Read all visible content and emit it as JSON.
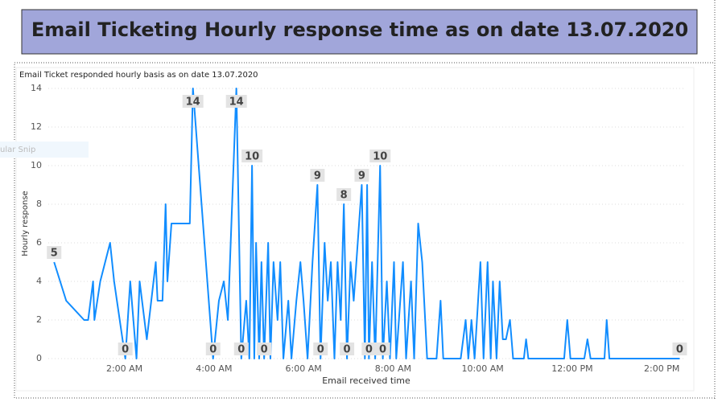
{
  "header": {
    "title": "Email Ticketing Hourly response time as on date 13.07.2020"
  },
  "overlay_text": "ular Snip",
  "chart_data": {
    "type": "line",
    "title": "Email Ticket responded hourly basis as on date 13.07.2020",
    "x_label": "Email received time",
    "y_label": "Hourly response",
    "x": [
      0.43,
      0.7,
      1.1,
      1.19,
      1.3,
      1.33,
      1.46,
      1.68,
      1.77,
      2.02,
      2.13,
      2.27,
      2.34,
      2.5,
      2.7,
      2.74,
      2.85,
      2.92,
      2.96,
      3.05,
      3.14,
      3.46,
      3.53,
      3.98,
      4.11,
      4.22,
      4.31,
      4.5,
      4.61,
      4.72,
      4.79,
      4.85,
      4.9,
      4.94,
      5.01,
      5.06,
      5.12,
      5.21,
      5.26,
      5.33,
      5.42,
      5.48,
      5.55,
      5.66,
      5.73,
      5.84,
      5.93,
      6.0,
      6.09,
      6.2,
      6.31,
      6.38,
      6.47,
      6.54,
      6.61,
      6.69,
      6.76,
      6.83,
      6.9,
      6.97,
      7.05,
      7.12,
      7.21,
      7.3,
      7.37,
      7.42,
      7.46,
      7.53,
      7.6,
      7.71,
      7.77,
      7.86,
      7.93,
      8.02,
      8.07,
      8.22,
      8.29,
      8.4,
      8.47,
      8.56,
      8.65,
      8.76,
      8.97,
      9.06,
      9.12,
      9.51,
      9.62,
      9.68,
      9.75,
      9.82,
      9.95,
      10.02,
      10.11,
      10.18,
      10.23,
      10.31,
      10.38,
      10.45,
      10.52,
      10.61,
      10.68,
      10.92,
      10.97,
      11.02,
      11.82,
      11.89,
      11.96,
      12.27,
      12.34,
      12.41,
      12.72,
      12.77,
      12.83,
      14.4
    ],
    "series": [
      {
        "color": "#118dff",
        "values": [
          5,
          3,
          2,
          2,
          4,
          2,
          4,
          6,
          4,
          0,
          4,
          0,
          4,
          1,
          5,
          3,
          3,
          8,
          4,
          7,
          7,
          7,
          14,
          0,
          3,
          4,
          2,
          14,
          0,
          3,
          0,
          10,
          0,
          6,
          0,
          5,
          0,
          6,
          0,
          5,
          2,
          5,
          0,
          3,
          0,
          3,
          5,
          3,
          0,
          5,
          9,
          0,
          6,
          3,
          5,
          0,
          5,
          2,
          8,
          0,
          5,
          3,
          6,
          9,
          0,
          9,
          0,
          5,
          0,
          10,
          0,
          4,
          0,
          5,
          0,
          5,
          0,
          4,
          0,
          7,
          5,
          0,
          0,
          3,
          0,
          0,
          2,
          0,
          2,
          0,
          5,
          0,
          5,
          0,
          4,
          0,
          4,
          1,
          1,
          2,
          0,
          0,
          1,
          0,
          0,
          2,
          0,
          0,
          1,
          0,
          0,
          2,
          0,
          0
        ],
        "value_labels": [
          "5",
          null,
          null,
          null,
          null,
          null,
          null,
          null,
          null,
          "0",
          null,
          null,
          null,
          null,
          null,
          null,
          null,
          null,
          null,
          null,
          null,
          null,
          "14",
          "0",
          null,
          null,
          null,
          "14",
          "0",
          null,
          null,
          "10",
          null,
          null,
          null,
          null,
          "0",
          null,
          null,
          null,
          null,
          null,
          null,
          null,
          null,
          null,
          null,
          null,
          null,
          null,
          "9",
          "0",
          null,
          null,
          null,
          null,
          null,
          null,
          "8",
          "0",
          null,
          null,
          null,
          "9",
          null,
          null,
          "0",
          null,
          null,
          "10",
          "0",
          null,
          null,
          null,
          null,
          null,
          null,
          null,
          null,
          null,
          null,
          null,
          null,
          null,
          null,
          null,
          null,
          null,
          null,
          null,
          null,
          null,
          null,
          null,
          null,
          null,
          null,
          null,
          null,
          null,
          null,
          null,
          null,
          null,
          null,
          null,
          null,
          null,
          null,
          null,
          null,
          null,
          null,
          "0"
        ]
      }
    ],
    "xlim": [
      0.3,
      14.5
    ],
    "ylim": [
      0,
      14
    ],
    "xticks": [
      {
        "value": 2,
        "label": "2:00 AM"
      },
      {
        "value": 4,
        "label": "4:00 AM"
      },
      {
        "value": 6,
        "label": "6:00 AM"
      },
      {
        "value": 8,
        "label": "8:00 AM"
      },
      {
        "value": 10,
        "label": "10:00 AM"
      },
      {
        "value": 12,
        "label": "12:00 PM"
      },
      {
        "value": 14,
        "label": "2:00 PM"
      }
    ],
    "yticks": [
      0,
      2,
      4,
      6,
      8,
      10,
      12,
      14
    ],
    "grid": true
  }
}
